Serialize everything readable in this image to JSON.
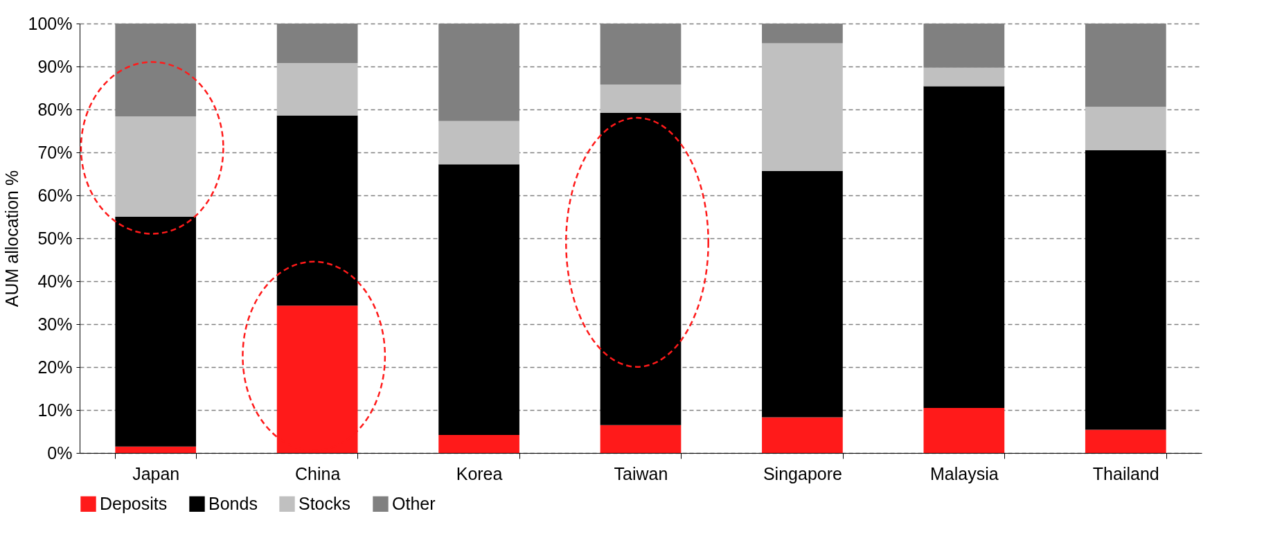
{
  "chart_data": {
    "type": "bar",
    "stacked": true,
    "ylabel": "AUM allocation %",
    "categories": [
      "Japan",
      "China",
      "Korea",
      "Taiwan",
      "Singapore",
      "Malaysia",
      "Thailand"
    ],
    "series": [
      {
        "name": "Deposits",
        "color": "#ff1a1a",
        "values": [
          1.5,
          34.3,
          4.2,
          6.5,
          8.3,
          10.5,
          5.4
        ]
      },
      {
        "name": "Bonds",
        "color": "#000000",
        "values": [
          53.5,
          44.3,
          63,
          72.7,
          57.4,
          74.9,
          65.1
        ]
      },
      {
        "name": "Stocks",
        "color": "#c0c0c0",
        "values": [
          23.4,
          12.2,
          10.1,
          6.6,
          29.7,
          4.3,
          10.1
        ]
      },
      {
        "name": "Other",
        "color": "#808080",
        "values": [
          21.6,
          9.2,
          22.7,
          14.2,
          4.6,
          10.3,
          19.4
        ]
      }
    ],
    "ylim": [
      0,
      100
    ],
    "yticks": [
      {
        "value": 0,
        "label": "0%"
      },
      {
        "value": 10,
        "label": "10%"
      },
      {
        "value": 20,
        "label": "20%"
      },
      {
        "value": 30,
        "label": "30%"
      },
      {
        "value": 40,
        "label": "40%"
      },
      {
        "value": 50,
        "label": "50%"
      },
      {
        "value": 60,
        "label": "60%"
      },
      {
        "value": 70,
        "label": "70%"
      },
      {
        "value": 80,
        "label": "80%"
      },
      {
        "value": 90,
        "label": "90%"
      },
      {
        "value": 100,
        "label": "100%"
      }
    ],
    "grid": "y",
    "legend": "bottom"
  }
}
